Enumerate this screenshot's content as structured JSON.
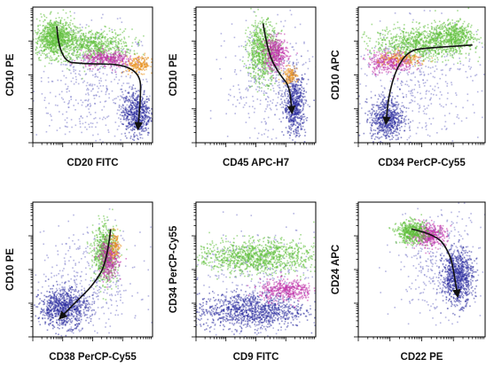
{
  "chart_data": [
    {
      "type": "scatter",
      "xlabel": "CD20 FITC",
      "ylabel": "CD10 PE",
      "scale": "log",
      "clusters": [
        {
          "color": "#5fbf3a",
          "cx": 0.18,
          "cy": 0.78,
          "rx": 0.16,
          "ry": 0.14,
          "n": 900
        },
        {
          "color": "#5fbf3a",
          "cx": 0.5,
          "cy": 0.72,
          "rx": 0.32,
          "ry": 0.12,
          "n": 700
        },
        {
          "color": "#c030a8",
          "cx": 0.62,
          "cy": 0.62,
          "rx": 0.22,
          "ry": 0.06,
          "n": 350
        },
        {
          "color": "#e8901c",
          "cx": 0.88,
          "cy": 0.58,
          "rx": 0.12,
          "ry": 0.06,
          "n": 200
        },
        {
          "color": "#2d2fa0",
          "cx": 0.86,
          "cy": 0.22,
          "rx": 0.12,
          "ry": 0.17,
          "n": 600
        },
        {
          "color": "#7878c8",
          "cx": 0.5,
          "cy": 0.4,
          "rx": 0.5,
          "ry": 0.45,
          "n": 450
        }
      ],
      "arrow": [
        [
          0.2,
          0.86
        ],
        [
          0.22,
          0.6
        ],
        [
          0.45,
          0.58
        ],
        [
          0.75,
          0.58
        ],
        [
          0.9,
          0.5
        ],
        [
          0.9,
          0.33
        ],
        [
          0.88,
          0.12
        ]
      ]
    },
    {
      "type": "scatter",
      "xlabel": "CD45 APC-H7",
      "ylabel": "CD10 PE",
      "scale": "log",
      "clusters": [
        {
          "color": "#5fbf3a",
          "cx": 0.55,
          "cy": 0.68,
          "rx": 0.13,
          "ry": 0.22,
          "n": 700
        },
        {
          "color": "#c030a8",
          "cx": 0.66,
          "cy": 0.66,
          "rx": 0.1,
          "ry": 0.12,
          "n": 400
        },
        {
          "color": "#e8901c",
          "cx": 0.78,
          "cy": 0.5,
          "rx": 0.06,
          "ry": 0.06,
          "n": 120
        },
        {
          "color": "#2d2fa0",
          "cx": 0.82,
          "cy": 0.28,
          "rx": 0.09,
          "ry": 0.22,
          "n": 600
        },
        {
          "color": "#7878c8",
          "cx": 0.6,
          "cy": 0.45,
          "rx": 0.35,
          "ry": 0.45,
          "n": 350
        }
      ],
      "arrow": [
        [
          0.56,
          0.88
        ],
        [
          0.6,
          0.66
        ],
        [
          0.7,
          0.5
        ],
        [
          0.78,
          0.42
        ],
        [
          0.8,
          0.24
        ]
      ]
    },
    {
      "type": "scatter",
      "xlabel": "CD34 PerCP-Cy55",
      "ylabel": "CD10 APC",
      "scale": "log",
      "clusters": [
        {
          "color": "#5fbf3a",
          "cx": 0.5,
          "cy": 0.74,
          "rx": 0.38,
          "ry": 0.12,
          "n": 900
        },
        {
          "color": "#5fbf3a",
          "cx": 0.75,
          "cy": 0.8,
          "rx": 0.15,
          "ry": 0.1,
          "n": 400
        },
        {
          "color": "#c030a8",
          "cx": 0.25,
          "cy": 0.6,
          "rx": 0.18,
          "ry": 0.08,
          "n": 350
        },
        {
          "color": "#e8901c",
          "cx": 0.35,
          "cy": 0.62,
          "rx": 0.2,
          "ry": 0.05,
          "n": 150
        },
        {
          "color": "#2d2fa0",
          "cx": 0.22,
          "cy": 0.18,
          "rx": 0.13,
          "ry": 0.16,
          "n": 600
        },
        {
          "color": "#7878c8",
          "cx": 0.45,
          "cy": 0.45,
          "rx": 0.5,
          "ry": 0.45,
          "n": 400
        }
      ],
      "arrow": [
        [
          0.9,
          0.72
        ],
        [
          0.55,
          0.7
        ],
        [
          0.4,
          0.68
        ],
        [
          0.3,
          0.55
        ],
        [
          0.24,
          0.35
        ],
        [
          0.22,
          0.16
        ]
      ]
    },
    {
      "type": "scatter",
      "xlabel": "CD38 PerCP-Cy55",
      "ylabel": "CD10 PE",
      "scale": "log",
      "clusters": [
        {
          "color": "#5fbf3a",
          "cx": 0.6,
          "cy": 0.62,
          "rx": 0.1,
          "ry": 0.2,
          "n": 700
        },
        {
          "color": "#c030a8",
          "cx": 0.63,
          "cy": 0.58,
          "rx": 0.08,
          "ry": 0.14,
          "n": 350
        },
        {
          "color": "#e8901c",
          "cx": 0.68,
          "cy": 0.68,
          "rx": 0.05,
          "ry": 0.1,
          "n": 100
        },
        {
          "color": "#2d2fa0",
          "cx": 0.25,
          "cy": 0.22,
          "rx": 0.2,
          "ry": 0.14,
          "n": 800
        },
        {
          "color": "#7878c8",
          "cx": 0.45,
          "cy": 0.4,
          "rx": 0.45,
          "ry": 0.4,
          "n": 400
        }
      ],
      "arrow": [
        [
          0.65,
          0.8
        ],
        [
          0.62,
          0.55
        ],
        [
          0.5,
          0.38
        ],
        [
          0.36,
          0.26
        ],
        [
          0.24,
          0.15
        ]
      ]
    },
    {
      "type": "scatter",
      "xlabel": "CD9 FITC",
      "ylabel": "CD34 PerCP-Cy55",
      "scale": "log",
      "clusters": [
        {
          "color": "#5fbf3a",
          "cx": 0.5,
          "cy": 0.6,
          "rx": 0.5,
          "ry": 0.12,
          "n": 1100
        },
        {
          "color": "#c030a8",
          "cx": 0.75,
          "cy": 0.35,
          "rx": 0.22,
          "ry": 0.08,
          "n": 400
        },
        {
          "color": "#2d2fa0",
          "cx": 0.45,
          "cy": 0.2,
          "rx": 0.45,
          "ry": 0.13,
          "n": 1000
        },
        {
          "color": "#7878c8",
          "cx": 0.5,
          "cy": 0.4,
          "rx": 0.5,
          "ry": 0.45,
          "n": 350
        }
      ],
      "arrow": []
    },
    {
      "type": "scatter",
      "xlabel": "CD22 PE",
      "ylabel": "CD24 APC",
      "scale": "log",
      "clusters": [
        {
          "color": "#5fbf3a",
          "cx": 0.42,
          "cy": 0.78,
          "rx": 0.12,
          "ry": 0.08,
          "n": 500
        },
        {
          "color": "#c030a8",
          "cx": 0.55,
          "cy": 0.76,
          "rx": 0.14,
          "ry": 0.08,
          "n": 450
        },
        {
          "color": "#2d2fa0",
          "cx": 0.78,
          "cy": 0.45,
          "rx": 0.12,
          "ry": 0.2,
          "n": 800
        },
        {
          "color": "#7878c8",
          "cx": 0.65,
          "cy": 0.55,
          "rx": 0.35,
          "ry": 0.38,
          "n": 400
        }
      ],
      "arrow": [
        [
          0.42,
          0.8
        ],
        [
          0.62,
          0.76
        ],
        [
          0.72,
          0.62
        ],
        [
          0.75,
          0.5
        ],
        [
          0.78,
          0.32
        ]
      ]
    }
  ]
}
